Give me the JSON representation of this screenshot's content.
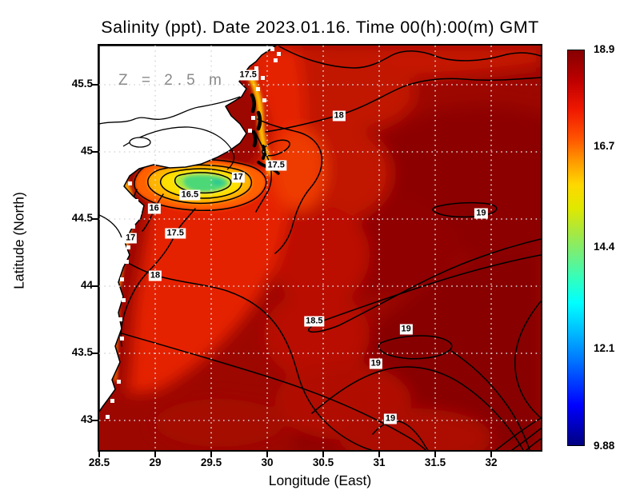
{
  "chart_data": {
    "type": "heatmap",
    "subtype": "filled-contour-map",
    "title": "Salinity (ppt). Date 2023.01.16. Time 00(h):00(m) GMT",
    "variable": "Salinity (ppt)",
    "date": "2023.01.16",
    "time": "00(h):00(m) GMT",
    "depth_annotation": "Z = 2.5 m",
    "xlabel": "Longitude (East)",
    "ylabel": "Latitude (North)",
    "xlim": [
      28.5,
      32.44
    ],
    "ylim": [
      42.78,
      45.79
    ],
    "x_ticks": [
      28.5,
      29,
      29.5,
      30,
      30.5,
      31,
      31.5,
      32
    ],
    "y_ticks": [
      45.5,
      45,
      44.5,
      44,
      43.5,
      43
    ],
    "grid": "white dotted lines every 0.5 degree",
    "colorbar": {
      "min": 9.88,
      "max": 18.9,
      "tick_labels": [
        "18.9",
        "16.7",
        "14.4",
        "12.1",
        "9.88"
      ],
      "tick_values": [
        18.9,
        16.7,
        14.4,
        12.1,
        9.88
      ],
      "colormap": "jet"
    },
    "contour_levels_labeled": [
      16,
      16.5,
      17,
      17.5,
      18,
      18.5,
      19
    ],
    "contour_labels": [
      {
        "value": "17.5",
        "lon": 29.83,
        "lat": 45.57
      },
      {
        "value": "18",
        "lon": 30.64,
        "lat": 45.27
      },
      {
        "value": "17.5",
        "lon": 30.08,
        "lat": 44.9
      },
      {
        "value": "17",
        "lon": 29.74,
        "lat": 44.81
      },
      {
        "value": "16.5",
        "lon": 29.31,
        "lat": 44.68
      },
      {
        "value": "16",
        "lon": 28.99,
        "lat": 44.58
      },
      {
        "value": "17",
        "lon": 28.78,
        "lat": 44.36
      },
      {
        "value": "17.5",
        "lon": 29.18,
        "lat": 44.39
      },
      {
        "value": "18",
        "lon": 29.0,
        "lat": 44.08
      },
      {
        "value": "19",
        "lon": 31.91,
        "lat": 44.54
      },
      {
        "value": "18.5",
        "lon": 30.42,
        "lat": 43.74
      },
      {
        "value": "19",
        "lon": 31.24,
        "lat": 43.68
      },
      {
        "value": "19",
        "lon": 30.97,
        "lat": 43.42
      },
      {
        "value": "19",
        "lon": 31.1,
        "lat": 43.01
      }
    ],
    "field_summary": {
      "open_sea_ppt": "18.5 to 19+ (dark red)",
      "nw_shelf_ppt": "17.5 to 18 (bright red)",
      "danube_plume_core_ppt": "15.5 to 16.5 (green-yellow)",
      "land_mask": "white, north-west corner (Danube delta coast)"
    },
    "colors": {
      "sea_dark_red": "#8e0300",
      "sea_bright_red": "#e52300",
      "plume_orange": "#ff8a00",
      "plume_yellow": "#ffe000",
      "plume_green": "#4ed878",
      "land": "#ffffff",
      "grid_dots": "#d9d9d9",
      "annotation_gray": "#8a8a8a"
    }
  }
}
